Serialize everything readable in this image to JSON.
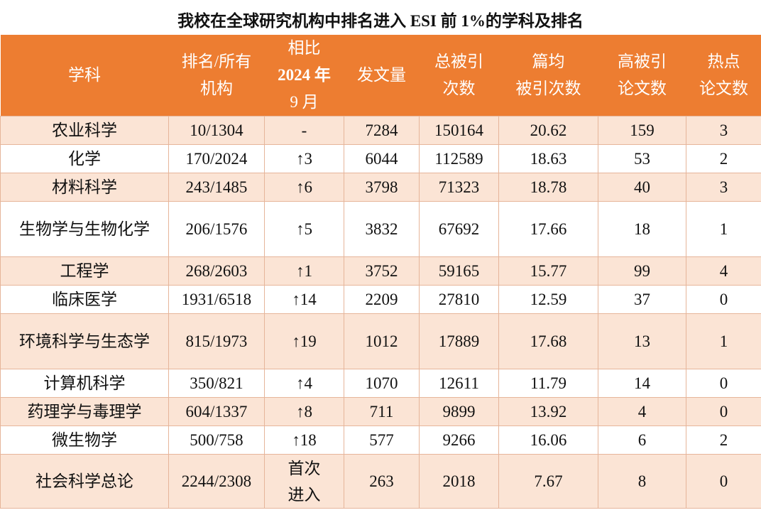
{
  "title": "我校在全球研究机构中排名进入 ESI 前 1%的学科及排名",
  "colors": {
    "header_bg": "#ED7D31",
    "header_text": "#FFFFFF",
    "row_shaded": "#FBE4D5",
    "row_plain": "#FFFFFF",
    "border": "#E6B59A"
  },
  "header": [
    {
      "lines": [
        "学科"
      ]
    },
    {
      "lines": [
        "排名/所有",
        "机构"
      ]
    },
    {
      "lines": [
        "相比",
        "2024 年",
        "9 月"
      ]
    },
    {
      "lines": [
        "发文量"
      ]
    },
    {
      "lines": [
        "总被引",
        "次数"
      ]
    },
    {
      "lines": [
        "篇均",
        "被引次数"
      ]
    },
    {
      "lines": [
        "高被引",
        "论文数"
      ]
    },
    {
      "lines": [
        "热点",
        "论文数"
      ]
    }
  ],
  "rows": [
    {
      "subject": "农业科学",
      "rank": "10/1304",
      "change": "-",
      "papers": "7284",
      "citations": "150164",
      "cites_per_paper": "20.62",
      "highly_cited": "159",
      "hot_papers": "3"
    },
    {
      "subject": "化学",
      "rank": "170/2024",
      "change": "↑3",
      "papers": "6044",
      "citations": "112589",
      "cites_per_paper": "18.63",
      "highly_cited": "53",
      "hot_papers": "2"
    },
    {
      "subject": "材料科学",
      "rank": "243/1485",
      "change": "↑6",
      "papers": "3798",
      "citations": "71323",
      "cites_per_paper": "18.78",
      "highly_cited": "40",
      "hot_papers": "3"
    },
    {
      "subject": "生物学与生物化学",
      "rank": "206/1576",
      "change": "↑5",
      "papers": "3832",
      "citations": "67692",
      "cites_per_paper": "17.66",
      "highly_cited": "18",
      "hot_papers": "1"
    },
    {
      "subject": "工程学",
      "rank": "268/2603",
      "change": "↑1",
      "papers": "3752",
      "citations": "59165",
      "cites_per_paper": "15.77",
      "highly_cited": "99",
      "hot_papers": "4"
    },
    {
      "subject": "临床医学",
      "rank": "1931/6518",
      "change": "↑14",
      "papers": "2209",
      "citations": "27810",
      "cites_per_paper": "12.59",
      "highly_cited": "37",
      "hot_papers": "0"
    },
    {
      "subject": "环境科学与生态学",
      "rank": "815/1973",
      "change": "↑19",
      "papers": "1012",
      "citations": "17889",
      "cites_per_paper": "17.68",
      "highly_cited": "13",
      "hot_papers": "1"
    },
    {
      "subject": "计算机科学",
      "rank": "350/821",
      "change": "↑4",
      "papers": "1070",
      "citations": "12611",
      "cites_per_paper": "11.79",
      "highly_cited": "14",
      "hot_papers": "0"
    },
    {
      "subject": "药理学与毒理学",
      "rank": "604/1337",
      "change": "↑8",
      "papers": "711",
      "citations": "9899",
      "cites_per_paper": "13.92",
      "highly_cited": "4",
      "hot_papers": "0"
    },
    {
      "subject": "微生物学",
      "rank": "500/758",
      "change": "↑18",
      "papers": "577",
      "citations": "9266",
      "cites_per_paper": "16.06",
      "highly_cited": "6",
      "hot_papers": "2"
    },
    {
      "subject": "社会科学总论",
      "rank": "2244/2308",
      "change": "首次进入",
      "change_lines": [
        "首次",
        "进入"
      ],
      "papers": "263",
      "citations": "2018",
      "cites_per_paper": "7.67",
      "highly_cited": "8",
      "hot_papers": "0"
    }
  ]
}
